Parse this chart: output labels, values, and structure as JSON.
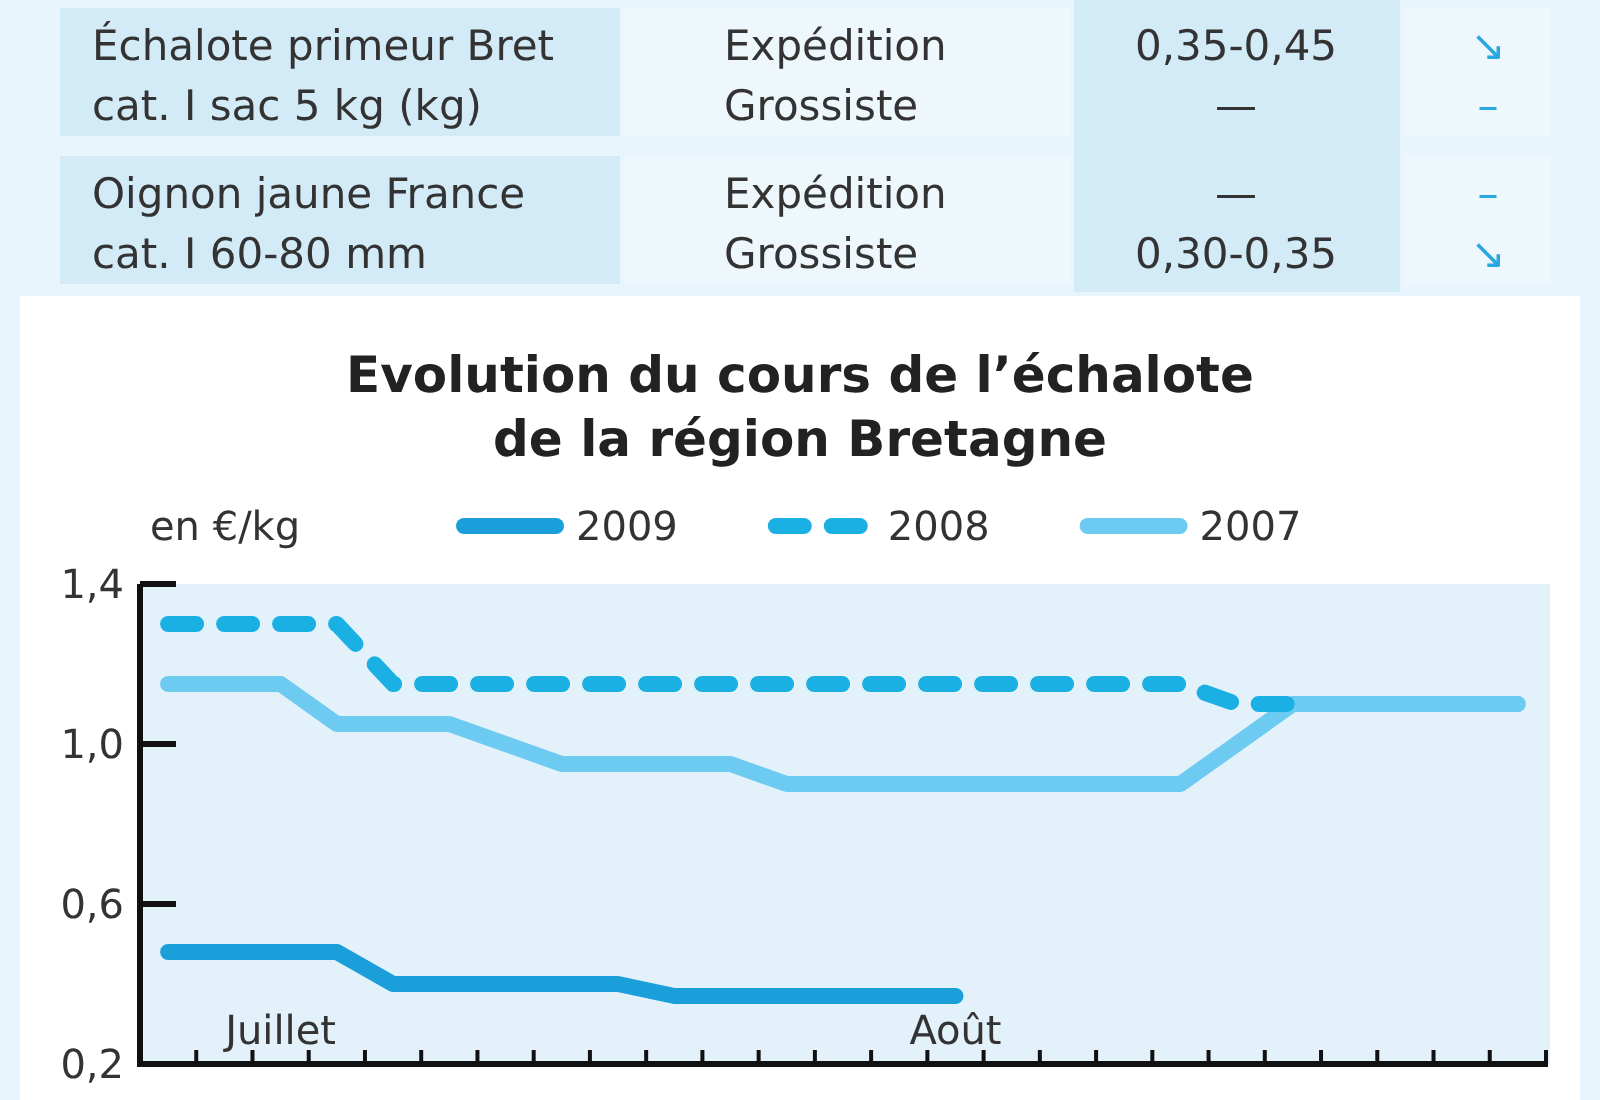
{
  "chart_data": [
    {
      "type": "other",
      "annotations": [
        "Échalote primeur Bret",
        "cat. I sac 5 kg (kg)",
        "Expédition",
        "Grossiste",
        "0,35-0,45",
        "—",
        "↘",
        "–",
        "Oignon jaune France",
        "cat. I 60-80 mm",
        "Expédition",
        "Grossiste",
        "—",
        "0,30-0,35",
        "–",
        "↘"
      ]
    },
    {
      "type": "line",
      "title": "Evolution du cours de l’échalote de la région Bretagne",
      "ylabel": "en €/kg",
      "categories": [
        null,
        null,
        "Juillet",
        null,
        null,
        null,
        null,
        null,
        null,
        null,
        null,
        null,
        null,
        null,
        "Août",
        null,
        null,
        null,
        null,
        null,
        null,
        null,
        null,
        null,
        null
      ],
      "ylim": [
        0.2,
        1.4
      ],
      "yticks": [
        {
          "value": 1.4,
          "label": "1,4"
        },
        {
          "value": 1.0,
          "label": "1,0"
        },
        {
          "value": 0.6,
          "label": "0,6"
        },
        {
          "value": 0.2,
          "label": "0,2"
        }
      ],
      "legend": "top",
      "series": [
        {
          "name": "2009",
          "color": "#1a9fdb",
          "values": [
            0.48,
            0.48,
            0.48,
            0.48,
            0.4,
            0.4,
            0.4,
            0.4,
            0.4,
            0.37,
            0.37,
            0.37,
            0.37,
            0.37,
            0.37,
            null,
            null,
            null,
            null,
            null,
            null,
            null,
            null,
            null,
            null
          ]
        },
        {
          "name": "2008",
          "color": "#1ab0e4",
          "line_style": "dashed",
          "values": [
            1.3,
            1.3,
            1.3,
            1.3,
            1.15,
            1.15,
            1.15,
            1.15,
            1.15,
            1.15,
            1.15,
            1.15,
            1.15,
            1.15,
            1.15,
            1.15,
            1.15,
            1.15,
            1.15,
            1.1,
            1.1,
            null,
            null,
            null,
            null
          ]
        },
        {
          "name": "2007",
          "color": "#6dcbf1",
          "values": [
            1.15,
            1.15,
            1.15,
            1.05,
            1.05,
            1.05,
            1.0,
            0.95,
            0.95,
            0.95,
            0.95,
            0.9,
            0.9,
            0.9,
            0.9,
            0.9,
            0.9,
            0.9,
            0.9,
            1.0,
            1.1,
            1.1,
            1.1,
            1.1,
            1.1
          ]
        }
      ]
    }
  ]
}
